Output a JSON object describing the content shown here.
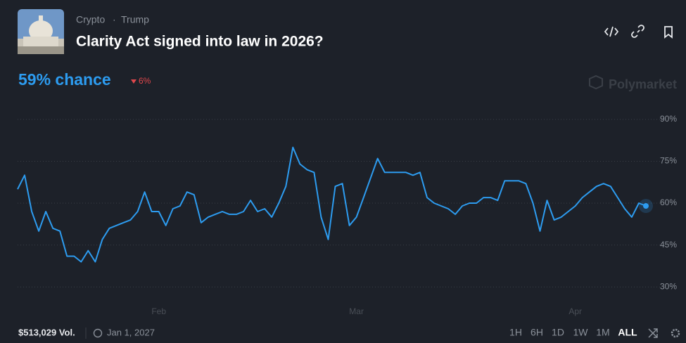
{
  "market": {
    "tags": [
      "Crypto",
      "Trump"
    ],
    "title": "Clarity Act signed into law in 2026?",
    "chance": "59% chance",
    "change": "6%",
    "brand": "Polymarket",
    "volume": "$513,029 Vol.",
    "end_date": "Jan 1, 2027",
    "ranges": [
      "1H",
      "6H",
      "1D",
      "1W",
      "1M",
      "ALL"
    ]
  },
  "chart_data": {
    "type": "line",
    "color": "#2d9cf0",
    "categories": [
      null,
      null,
      null,
      null,
      null,
      null,
      null,
      null,
      null,
      null,
      null,
      null,
      null,
      null,
      null,
      null,
      null,
      null,
      null,
      null,
      "Feb",
      null,
      null,
      null,
      null,
      null,
      null,
      null,
      null,
      null,
      null,
      null,
      null,
      null,
      null,
      null,
      null,
      null,
      null,
      null,
      null,
      null,
      null,
      null,
      null,
      null,
      null,
      null,
      "Mar",
      null,
      null,
      null,
      null,
      null,
      null,
      null,
      null,
      null,
      null,
      null,
      null,
      null,
      null,
      null,
      null,
      null,
      null,
      null,
      null,
      null,
      null,
      null,
      null,
      null,
      null,
      null,
      null,
      null,
      null,
      "Apr",
      null,
      null,
      null,
      null,
      null,
      null,
      null,
      null,
      null,
      null
    ],
    "values": [
      65,
      70,
      57,
      50,
      57,
      51,
      50,
      41,
      41,
      39,
      43,
      39,
      47,
      51,
      52,
      53,
      54,
      57,
      64,
      57,
      57,
      52,
      58,
      59,
      64,
      63,
      53,
      55,
      56,
      57,
      56,
      56,
      57,
      61,
      57,
      58,
      55,
      60,
      66,
      80,
      74,
      72,
      71,
      55,
      47,
      66,
      67,
      52,
      55,
      62,
      69,
      76,
      71,
      71,
      71,
      71,
      70,
      71,
      62,
      60,
      59,
      58,
      56,
      59,
      60,
      60,
      62,
      62,
      61,
      68,
      68,
      68,
      67,
      60,
      50,
      61,
      54,
      55,
      57,
      59,
      62,
      64,
      66,
      67,
      66,
      62,
      58,
      55,
      60,
      59
    ],
    "ylim": [
      22,
      95
    ],
    "yticks": [
      {
        "value": 30,
        "label": "30%"
      },
      {
        "value": 45,
        "label": "45%"
      },
      {
        "value": 60,
        "label": "60%"
      },
      {
        "value": 75,
        "label": "75%"
      },
      {
        "value": 90,
        "label": "90%"
      }
    ],
    "grid": true
  }
}
